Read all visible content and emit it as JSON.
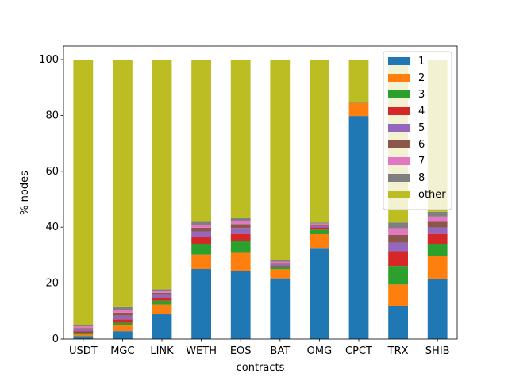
{
  "chart_data": {
    "type": "bar",
    "stacked": true,
    "xlabel": "contracts",
    "ylabel": "% nodes",
    "ylim": [
      0,
      100
    ],
    "yticks": [
      0,
      20,
      40,
      60,
      80,
      100
    ],
    "grid": false,
    "legend_position": "top-right",
    "categories": [
      "USDT",
      "MGC",
      "LINK",
      "WETH",
      "EOS",
      "BAT",
      "OMG",
      "CPCT",
      "TRX",
      "SHIB"
    ],
    "series": [
      {
        "name": "1",
        "color": "#1f77b4",
        "values": [
          1.0,
          2.8,
          8.8,
          25.0,
          24.2,
          21.7,
          32.3,
          79.8,
          11.7,
          21.6
        ]
      },
      {
        "name": "2",
        "color": "#ff7f0e",
        "values": [
          0.6,
          2.0,
          3.5,
          5.2,
          6.6,
          3.2,
          5.2,
          4.6,
          7.8,
          8.0
        ]
      },
      {
        "name": "3",
        "color": "#2ca02c",
        "values": [
          0.6,
          1.0,
          1.4,
          3.8,
          4.2,
          0.7,
          1.6,
          0.1,
          6.6,
          4.4
        ]
      },
      {
        "name": "4",
        "color": "#d62728",
        "values": [
          0.5,
          1.2,
          1.0,
          2.6,
          2.6,
          0.4,
          0.8,
          0.1,
          5.3,
          3.6
        ]
      },
      {
        "name": "5",
        "color": "#9467bd",
        "values": [
          0.6,
          1.3,
          1.0,
          1.9,
          2.1,
          0.6,
          0.5,
          0.0,
          3.1,
          2.3
        ]
      },
      {
        "name": "6",
        "color": "#8c564b",
        "values": [
          0.6,
          1.1,
          0.8,
          1.3,
          1.4,
          0.6,
          0.5,
          0.0,
          2.8,
          2.0
        ]
      },
      {
        "name": "7",
        "color": "#e377c2",
        "values": [
          0.6,
          1.1,
          0.7,
          1.1,
          1.1,
          0.5,
          0.4,
          0.0,
          2.3,
          1.9
        ]
      },
      {
        "name": "8",
        "color": "#7f7f7f",
        "values": [
          0.5,
          0.9,
          0.6,
          1.0,
          1.0,
          0.5,
          0.4,
          0.0,
          2.1,
          1.7
        ]
      },
      {
        "name": "other",
        "color": "#bcbd22",
        "values": [
          95.0,
          88.6,
          82.2,
          58.1,
          56.8,
          71.8,
          58.3,
          15.4,
          58.3,
          54.5
        ]
      }
    ]
  }
}
